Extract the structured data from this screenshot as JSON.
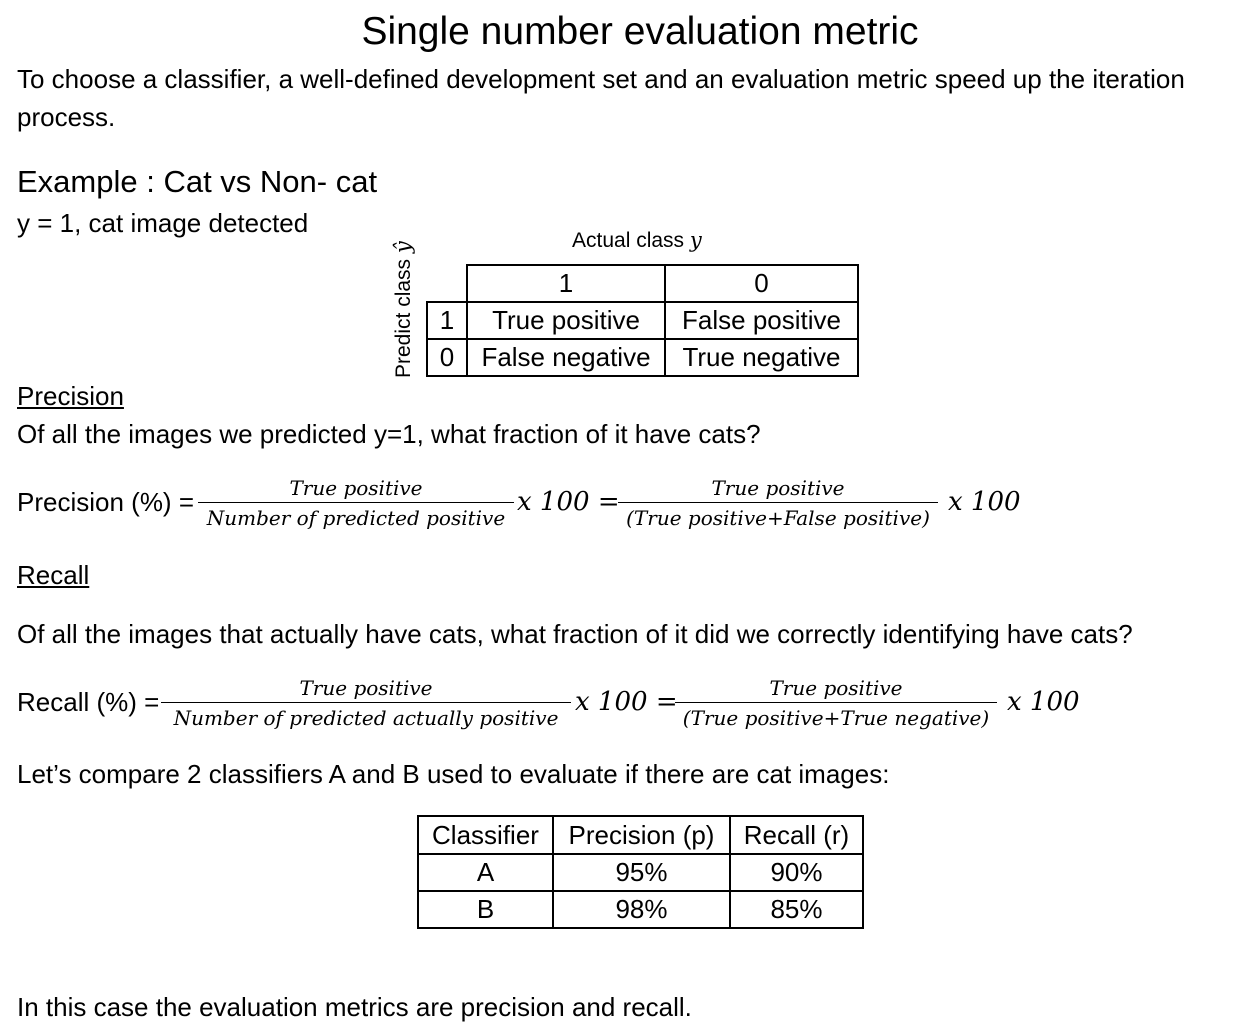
{
  "title": "Single number evaluation metric",
  "intro": {
    "line1": "To choose a classifier, a well-defined development set and an evaluation metric speed up the iteration",
    "line2": "process."
  },
  "example": {
    "heading": "Example : Cat vs Non- cat",
    "note": "y = 1, cat image detected"
  },
  "confusion": {
    "actual_label": "Actual class",
    "actual_symbol": "y",
    "predict_label": "Predict class",
    "predict_symbol": "ŷ",
    "col_headers": [
      "1",
      "0"
    ],
    "rows": [
      {
        "label": "1",
        "cells": [
          "True positive",
          "False positive"
        ]
      },
      {
        "label": "0",
        "cells": [
          "False negative",
          "True negative"
        ]
      }
    ]
  },
  "precision": {
    "heading": "Precision",
    "question": "Of all the images we predicted y=1, what fraction of it have cats?",
    "lhs": "Precision (%) =",
    "frac1_num": "True positive",
    "frac1_den": "Number of predicted positive",
    "times1": "x 100 =",
    "frac2_num": "True positive",
    "frac2_den": "(True positive+False positive)",
    "times2": "x 100"
  },
  "recall": {
    "heading": "Recall",
    "question": "Of all the images that actually have cats, what fraction of it did we correctly identifying have cats?",
    "lhs": "Recall (%) =",
    "frac1_num": "True positive",
    "frac1_den": "Number of predicted actually positive",
    "times1": "x 100 =",
    "frac2_num": "True positive",
    "frac2_den": "(True positive+True negative)",
    "times2": "x 100"
  },
  "compare": {
    "intro": "Let’s compare 2 classifiers A and B used to evaluate if there are cat images:",
    "headers": [
      "Classifier",
      "Precision (p)",
      "Recall (r)"
    ],
    "rows": [
      [
        "A",
        "95%",
        "90%"
      ],
      [
        "B",
        "98%",
        "85%"
      ]
    ]
  },
  "conclusion": "In this case the evaluation metrics are precision and recall."
}
